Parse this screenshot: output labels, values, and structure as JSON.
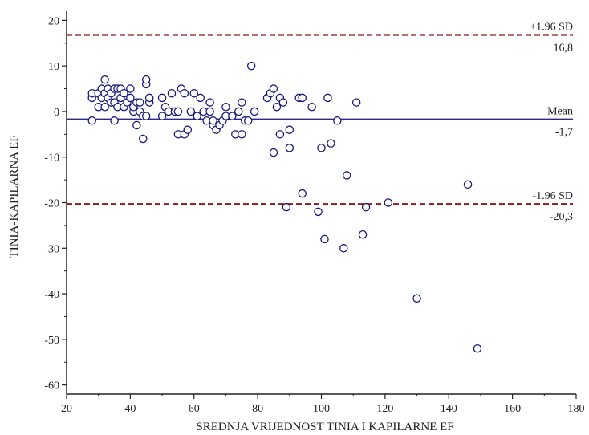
{
  "chart_data": {
    "type": "scatter",
    "title": "",
    "xlabel": "SREDNJA VRIJEDNOST TINIA I KAPILARNE EF",
    "ylabel": "TINIA-KAPILARNA EF",
    "xlim": [
      20,
      180
    ],
    "ylim": [
      -62,
      22
    ],
    "xticks": [
      20,
      40,
      60,
      80,
      100,
      120,
      140,
      160,
      180
    ],
    "yticks": [
      20,
      10,
      0,
      -10,
      -20,
      -30,
      -40,
      -50,
      -60
    ],
    "grid": false,
    "colors": {
      "points": "#1a1a7a",
      "mean_line": "#2a2a8a",
      "sd_line": "#8b1a1a",
      "axis": "#222222"
    },
    "reference_lines": [
      {
        "id": "upper",
        "label": "+1.96 SD",
        "value_label": "16,8",
        "y": 16.8,
        "style": "dashed",
        "color": "#8b1a1a"
      },
      {
        "id": "mean",
        "label": "Mean",
        "value_label": "-1,7",
        "y": -1.7,
        "style": "solid",
        "color": "#2a2a8a"
      },
      {
        "id": "lower",
        "label": "-1.96 SD",
        "value_label": "-20,3",
        "y": -20.3,
        "style": "dashed",
        "color": "#8b1a1a"
      }
    ],
    "points": [
      [
        28,
        3
      ],
      [
        28,
        4
      ],
      [
        28,
        -2
      ],
      [
        30,
        1
      ],
      [
        30,
        4
      ],
      [
        31,
        5
      ],
      [
        31,
        3
      ],
      [
        32,
        7
      ],
      [
        32,
        4
      ],
      [
        32,
        1
      ],
      [
        33,
        3
      ],
      [
        33,
        5
      ],
      [
        34,
        2
      ],
      [
        34,
        4
      ],
      [
        35,
        -2
      ],
      [
        35,
        2
      ],
      [
        35,
        5
      ],
      [
        36,
        5
      ],
      [
        36,
        1
      ],
      [
        37,
        3
      ],
      [
        37,
        5
      ],
      [
        38,
        4
      ],
      [
        38,
        1
      ],
      [
        39,
        2
      ],
      [
        40,
        5
      ],
      [
        40,
        3
      ],
      [
        41,
        0
      ],
      [
        41,
        1
      ],
      [
        42,
        2
      ],
      [
        42,
        -3
      ],
      [
        43,
        2
      ],
      [
        43,
        0
      ],
      [
        44,
        -1
      ],
      [
        44,
        -6
      ],
      [
        45,
        6
      ],
      [
        45,
        7
      ],
      [
        45,
        -1
      ],
      [
        46,
        2
      ],
      [
        46,
        3
      ],
      [
        50,
        3
      ],
      [
        50,
        -1
      ],
      [
        51,
        1
      ],
      [
        52,
        0
      ],
      [
        53,
        4
      ],
      [
        54,
        0
      ],
      [
        55,
        0
      ],
      [
        55,
        -5
      ],
      [
        56,
        5
      ],
      [
        57,
        -5
      ],
      [
        57,
        4
      ],
      [
        58,
        -4
      ],
      [
        59,
        0
      ],
      [
        60,
        4
      ],
      [
        61,
        -1
      ],
      [
        62,
        3
      ],
      [
        63,
        0
      ],
      [
        64,
        -2
      ],
      [
        65,
        2
      ],
      [
        65,
        0
      ],
      [
        66,
        -3
      ],
      [
        66,
        -2
      ],
      [
        67,
        -4
      ],
      [
        68,
        -3
      ],
      [
        69,
        -2
      ],
      [
        70,
        1
      ],
      [
        70,
        -1
      ],
      [
        72,
        -1
      ],
      [
        73,
        -5
      ],
      [
        74,
        0
      ],
      [
        75,
        2
      ],
      [
        75,
        -5
      ],
      [
        76,
        -2
      ],
      [
        77,
        -2
      ],
      [
        78,
        10
      ],
      [
        79,
        0
      ],
      [
        83,
        3
      ],
      [
        84,
        4
      ],
      [
        85,
        5
      ],
      [
        85,
        -9
      ],
      [
        86,
        1
      ],
      [
        87,
        3
      ],
      [
        87,
        -5
      ],
      [
        88,
        2
      ],
      [
        89,
        -21
      ],
      [
        90,
        -4
      ],
      [
        90,
        -8
      ],
      [
        93,
        3
      ],
      [
        94,
        3
      ],
      [
        94,
        -18
      ],
      [
        97,
        1
      ],
      [
        99,
        -22
      ],
      [
        100,
        -8
      ],
      [
        101,
        -28
      ],
      [
        102,
        3
      ],
      [
        103,
        -7
      ],
      [
        105,
        -2
      ],
      [
        107,
        -30
      ],
      [
        108,
        -14
      ],
      [
        111,
        2
      ],
      [
        113,
        -27
      ],
      [
        114,
        -21
      ],
      [
        121,
        -20
      ],
      [
        130,
        -41
      ],
      [
        146,
        -16
      ],
      [
        149,
        -52
      ]
    ]
  }
}
